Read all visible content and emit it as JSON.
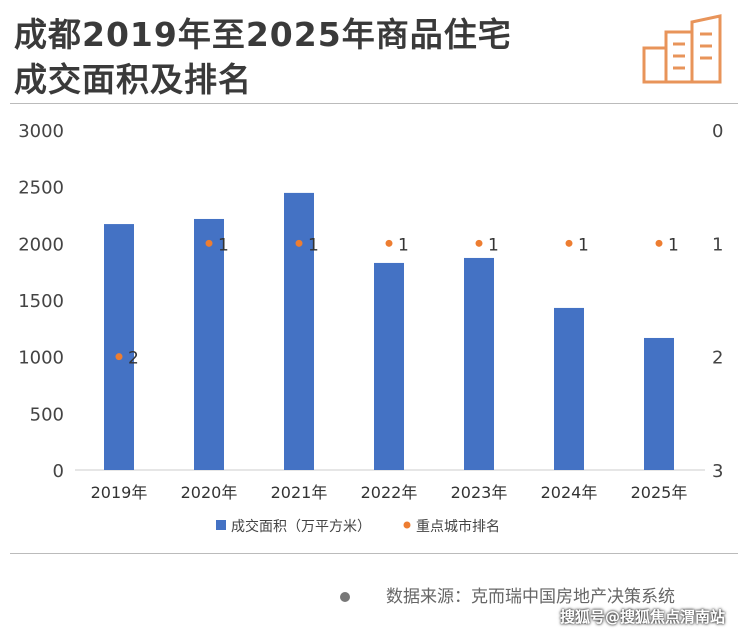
{
  "header": {
    "title_line1": "成都2019年至2025年商品住宅",
    "title_line2": "成交面积及排名"
  },
  "chart_data": {
    "type": "bar",
    "title": "成都2019年至2025年商品住宅成交面积及排名",
    "categories": [
      "2019年",
      "2020年",
      "2021年",
      "2022年",
      "2023年",
      "2024年",
      "2025年"
    ],
    "series": [
      {
        "name": "成交面积（万平方米）",
        "type": "bar",
        "axis": "left",
        "color": "#4472C4",
        "values": [
          2170,
          2215,
          2445,
          1827,
          1871,
          1430,
          1165
        ]
      },
      {
        "name": "重点城市排名",
        "type": "scatter",
        "axis": "right",
        "color": "#ED7D31",
        "values": [
          2,
          1,
          1,
          1,
          1,
          1,
          1
        ]
      }
    ],
    "left_axis": {
      "ylim": [
        0,
        3000
      ],
      "ticks": [
        "0",
        "500",
        "1000",
        "1500",
        "2000",
        "2500",
        "3000"
      ]
    },
    "right_axis": {
      "ylim": [
        0,
        3
      ],
      "reversed": true,
      "ticks": [
        "0",
        "1",
        "2",
        "3"
      ]
    },
    "legend": "bottom"
  },
  "footer": {
    "source": "数据来源：克而瑞中国房地产决策系统",
    "watermark": "搜狐号@搜狐焦点渭南站"
  }
}
